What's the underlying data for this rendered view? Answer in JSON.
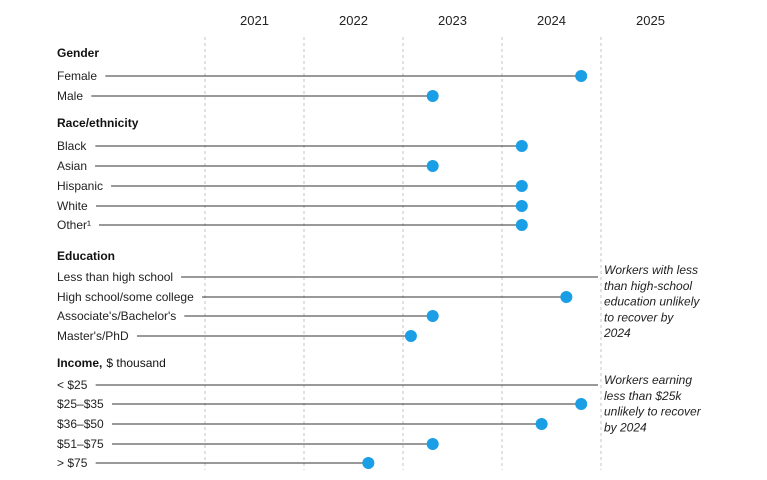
{
  "chart_data": {
    "type": "dumbbell",
    "x_ticks": [
      "2021",
      "2022",
      "2023",
      "2024",
      "2025"
    ],
    "colors": {
      "marker": "#1a9ee6",
      "line": "#333333",
      "grid": "#c4c4c4"
    },
    "groups": [
      {
        "title": "Gender",
        "items": [
          {
            "label": "Female",
            "value": 2024.8
          },
          {
            "label": "Male",
            "value": 2023.3
          }
        ]
      },
      {
        "title": "Race/ethnicity",
        "items": [
          {
            "label": "Black",
            "value": 2024.2
          },
          {
            "label": "Asian",
            "value": 2023.3
          },
          {
            "label": "Hispanic",
            "value": 2024.2
          },
          {
            "label": "White",
            "value": 2024.2
          },
          {
            "label": "Other¹",
            "value": 2024.2
          }
        ]
      },
      {
        "title": "Education",
        "items": [
          {
            "label": "Less than high school",
            "value": null
          },
          {
            "label": "High school/some college",
            "value": 2024.65
          },
          {
            "label": "Associate's/Bachelor's",
            "value": 2023.3
          },
          {
            "label": "Master's/PhD",
            "value": 2023.08
          }
        ],
        "note": [
          "Workers with less",
          "than high-school",
          "education unlikely",
          "to recover by",
          "2024"
        ]
      },
      {
        "title": "Income,",
        "unit": "$ thousand",
        "items": [
          {
            "label": "< $25",
            "value": null
          },
          {
            "label": "$25–$35",
            "value": 2024.8
          },
          {
            "label": "$36–$50",
            "value": 2024.4
          },
          {
            "label": "$51–$75",
            "value": 2023.3
          },
          {
            "label": "> $75",
            "value": 2022.65
          }
        ],
        "note": [
          "Workers earning",
          "less than $25k",
          "unlikely to recover",
          "by 2024"
        ]
      }
    ]
  }
}
